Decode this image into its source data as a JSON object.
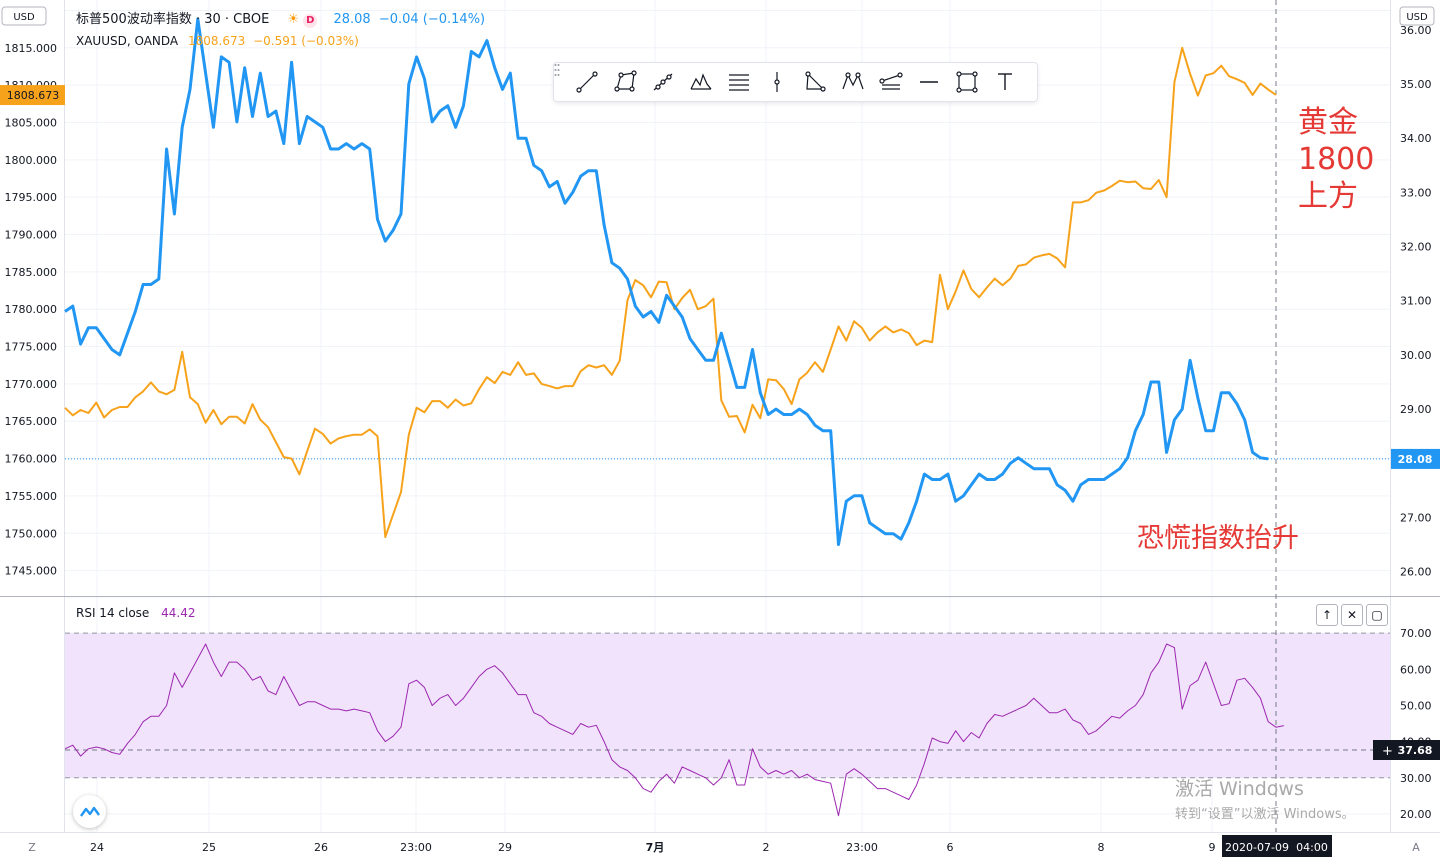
{
  "header": {
    "title_main": "标普500波动率指数 · 30 · CBOE",
    "badge_letter": "D",
    "vix_last": "28.08",
    "vix_change": "−0.04 (−0.14%)",
    "gold_symbol": "XAUUSD, OANDA",
    "gold_last": "1808.673",
    "gold_change": "−0.591 (−0.03%)"
  },
  "scale_labels": {
    "left_currency": "USD",
    "right_currency": "USD",
    "gold_price_tag": "1808.673",
    "vix_price_tag": "28.08",
    "rsi_cursor_tag": "37.68"
  },
  "rsi_legend": {
    "name": "RSI 14 close",
    "value": "44.42"
  },
  "annotations": {
    "gold_note_1": "黄金",
    "gold_note_2": "1800",
    "gold_note_3": "上方",
    "vix_note": "恐慌指数抬升"
  },
  "x_axis": {
    "ticks": [
      "24",
      "25",
      "26",
      "23:00",
      "29",
      "7月",
      "2",
      "23:00",
      "6",
      "8",
      "9"
    ],
    "cursor_date": "2020-07-09",
    "cursor_time": "04:00",
    "left_button": "Z",
    "right_button": "A"
  },
  "watermark": {
    "line1": "激活 Windows",
    "line2": "转到“设置”以激活 Windows。"
  },
  "toolbar_icons": [
    "trend-line-icon",
    "channel-icon",
    "pitchfork-icon",
    "pattern-icon",
    "fib-retracement-icon",
    "cross-line-icon",
    "triangle-pattern-icon",
    "xabcd-icon",
    "fib-fan-icon",
    "horizontal-ray-icon",
    "rectangle-icon",
    "text-icon"
  ],
  "colors": {
    "vix": "#2196f3",
    "gold": "#f7a21b",
    "rsi": "#9c27b0",
    "annotation": "#e53935",
    "rsi_band": "#f1e3fb"
  },
  "chart_data": [
    {
      "type": "line",
      "title": "标普500波动率指数 · 30 · CBOE",
      "left_axis": {
        "label": "USD",
        "ticks": [
          1745,
          1750,
          1755,
          1760,
          1765,
          1770,
          1775,
          1780,
          1785,
          1790,
          1795,
          1800,
          1805,
          1810,
          1815,
          1820
        ],
        "range": [
          1741.6,
          1821.4
        ]
      },
      "right_axis": {
        "label": "USD",
        "ticks": [
          26,
          27,
          28,
          29,
          30,
          31,
          32,
          33,
          34,
          35,
          36
        ],
        "range": [
          25.55,
          36.55
        ]
      },
      "series": [
        {
          "name": "XAUUSD, OANDA",
          "axis": "left",
          "color": "#f7a21b",
          "last": 1808.673,
          "values": [
            1766.8,
            1765.8,
            1766.5,
            1766.1,
            1767.5,
            1765.5,
            1766.5,
            1766.9,
            1766.9,
            1768.2,
            1769.0,
            1770.2,
            1769.0,
            1768.6,
            1769.2,
            1774.3,
            1768.2,
            1767.3,
            1764.8,
            1766.5,
            1764.6,
            1765.6,
            1765.6,
            1764.7,
            1767.3,
            1765.2,
            1764.2,
            1762.2,
            1760.2,
            1760.0,
            1757.9,
            1761.0,
            1764.0,
            1763.3,
            1762.0,
            1762.7,
            1763.0,
            1763.2,
            1763.2,
            1763.9,
            1763.0,
            1749.5,
            1752.5,
            1755.5,
            1763.2,
            1766.8,
            1766.2,
            1767.7,
            1767.7,
            1766.8,
            1767.9,
            1767.1,
            1767.4,
            1769.3,
            1770.9,
            1770.1,
            1771.6,
            1771.2,
            1772.9,
            1771.2,
            1771.4,
            1770.0,
            1769.7,
            1769.4,
            1769.7,
            1769.7,
            1771.7,
            1772.5,
            1772.2,
            1772.5,
            1771.2,
            1773.1,
            1781.2,
            1783.9,
            1783.2,
            1781.6,
            1783.7,
            1783.6,
            1780.0,
            1781.5,
            1782.6,
            1780.0,
            1780.4,
            1781.4,
            1767.8,
            1765.6,
            1765.7,
            1763.5,
            1767.2,
            1765.4,
            1770.6,
            1770.5,
            1769.3,
            1767.3,
            1770.6,
            1771.5,
            1772.9,
            1771.6,
            1774.6,
            1777.7,
            1775.8,
            1778.4,
            1777.5,
            1775.8,
            1776.9,
            1777.7,
            1776.9,
            1777.3,
            1776.8,
            1775.2,
            1775.8,
            1775.6,
            1784.6,
            1780.0,
            1782.4,
            1785.2,
            1782.7,
            1781.6,
            1782.9,
            1784.1,
            1783.2,
            1784.1,
            1785.8,
            1786.0,
            1786.9,
            1787.2,
            1787.4,
            1786.8,
            1785.6,
            1794.3,
            1794.3,
            1794.6,
            1795.6,
            1795.9,
            1796.5,
            1797.2,
            1797.0,
            1797.1,
            1796.2,
            1796.1,
            1797.3,
            1795.0,
            1810.4,
            1815.0,
            1811.5,
            1808.6,
            1811.3,
            1811.6,
            1812.6,
            1811.2,
            1810.8,
            1810.3,
            1808.7,
            1810.2,
            1809.4,
            1808.7
          ]
        },
        {
          "name": "标普500波动率指数",
          "axis": "right",
          "color": "#2196f3",
          "last": 28.08,
          "values": [
            30.8,
            30.9,
            30.2,
            30.5,
            30.5,
            30.3,
            30.1,
            30.0,
            30.4,
            30.8,
            31.3,
            31.3,
            31.4,
            33.8,
            32.6,
            34.2,
            34.9,
            36.2,
            35.2,
            34.2,
            35.5,
            35.4,
            34.3,
            35.3,
            34.4,
            35.2,
            34.4,
            34.5,
            33.9,
            35.4,
            33.9,
            34.4,
            34.3,
            34.2,
            33.8,
            33.8,
            33.9,
            33.8,
            33.9,
            33.8,
            32.5,
            32.1,
            32.3,
            32.6,
            35.0,
            35.5,
            35.1,
            34.3,
            34.5,
            34.6,
            34.2,
            34.6,
            35.6,
            35.5,
            35.8,
            35.3,
            34.9,
            35.2,
            34.0,
            34.0,
            33.5,
            33.4,
            33.1,
            33.2,
            32.8,
            33.0,
            33.3,
            33.4,
            33.4,
            32.4,
            31.7,
            31.6,
            31.4,
            30.9,
            30.7,
            30.8,
            30.6,
            31.1,
            30.9,
            30.7,
            30.3,
            30.1,
            29.9,
            29.9,
            30.4,
            29.9,
            29.4,
            29.4,
            30.1,
            29.3,
            28.9,
            29.0,
            28.9,
            28.9,
            29.0,
            28.9,
            28.7,
            28.6,
            28.6,
            26.5,
            27.3,
            27.4,
            27.4,
            26.9,
            26.8,
            26.7,
            26.7,
            26.6,
            26.9,
            27.3,
            27.8,
            27.7,
            27.7,
            27.8,
            27.3,
            27.4,
            27.6,
            27.8,
            27.7,
            27.7,
            27.8,
            28.0,
            28.1,
            28.0,
            27.9,
            27.9,
            27.9,
            27.6,
            27.5,
            27.3,
            27.6,
            27.7,
            27.7,
            27.7,
            27.8,
            27.9,
            28.1,
            28.6,
            28.9,
            29.5,
            29.5,
            28.2,
            28.8,
            29.0,
            29.9,
            29.2,
            28.6,
            28.6,
            29.3,
            29.3,
            29.1,
            28.8,
            28.2,
            28.1,
            28.08
          ]
        }
      ]
    },
    {
      "type": "line",
      "title": "RSI 14 close",
      "right_axis": {
        "ticks": [
          20,
          30,
          40,
          50,
          60,
          70,
          80
        ],
        "range": [
          15,
          80
        ]
      },
      "bands": {
        "upper": 70,
        "lower": 30,
        "cursor_level": 37.68
      },
      "series": [
        {
          "name": "RSI 14 close",
          "axis": "right",
          "color": "#9c27b0",
          "last": 44.42,
          "values": [
            38,
            39,
            36,
            38,
            38.5,
            38,
            37,
            36.5,
            39.5,
            42,
            45.5,
            47,
            47,
            50,
            59,
            55,
            59,
            63,
            67,
            62,
            58,
            62,
            62,
            60,
            57,
            58,
            54,
            53,
            58,
            54,
            50,
            51,
            51,
            50,
            49,
            49,
            48.5,
            49,
            48.5,
            48,
            43,
            40,
            41.5,
            44,
            56,
            57,
            55,
            50,
            52,
            53,
            50,
            52,
            55,
            58,
            60,
            61,
            59,
            56,
            53,
            53,
            48,
            47,
            45,
            44,
            43,
            42,
            45,
            44,
            44.5,
            40,
            35,
            33,
            32,
            30,
            27,
            26,
            29,
            31,
            28.5,
            33,
            32,
            31,
            30,
            28,
            30,
            35,
            28,
            28,
            38,
            33,
            31,
            32,
            31,
            32,
            30,
            31,
            29.5,
            29,
            28.5,
            19.5,
            31,
            32.5,
            31,
            29,
            27,
            27,
            26,
            25,
            24,
            28,
            34,
            41,
            40,
            39.5,
            43,
            40,
            42.5,
            41,
            45,
            47.5,
            47,
            48,
            49,
            50,
            52,
            50,
            48,
            48,
            49,
            46,
            45,
            42,
            43,
            45,
            47,
            46.5,
            48.5,
            50,
            53,
            59,
            62,
            67,
            66,
            49,
            55.5,
            57,
            62,
            56,
            50,
            50.5,
            57,
            57.5,
            55,
            52,
            45.5,
            44,
            44.42
          ]
        }
      ]
    }
  ]
}
